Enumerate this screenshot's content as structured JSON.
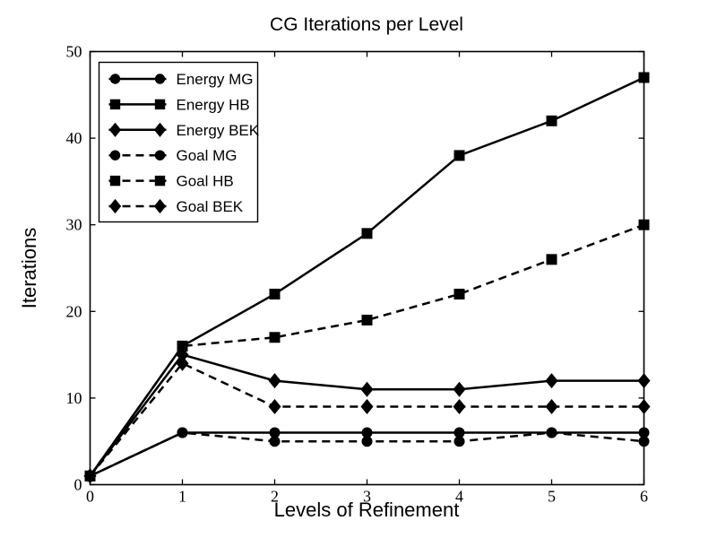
{
  "chart_data": {
    "type": "line",
    "title": "CG Iterations per Level",
    "xlabel": "Levels of Refinement",
    "ylabel": "Iterations",
    "x": [
      0,
      1,
      2,
      3,
      4,
      5,
      6
    ],
    "xlim": [
      0,
      6
    ],
    "ylim": [
      0,
      50
    ],
    "xticks": [
      "0",
      "1",
      "2",
      "3",
      "4",
      "5",
      "6"
    ],
    "yticks": [
      "0",
      "10",
      "20",
      "30",
      "40",
      "50"
    ],
    "grid": false,
    "legend_position": "upper-left",
    "foreground_color": "#000000",
    "background_color": "#ffffff",
    "series": [
      {
        "name": "Energy MG",
        "marker": "circle",
        "line": "solid",
        "values": [
          1,
          6,
          6,
          6,
          6,
          6,
          6
        ]
      },
      {
        "name": "Energy HB",
        "marker": "square",
        "line": "solid",
        "values": [
          1,
          16,
          22,
          29,
          38,
          42,
          47
        ]
      },
      {
        "name": "Energy BEK",
        "marker": "diamond",
        "line": "solid",
        "values": [
          1,
          15,
          12,
          11,
          11,
          12,
          12
        ]
      },
      {
        "name": "Goal MG",
        "marker": "circle",
        "line": "dashed",
        "values": [
          1,
          6,
          5,
          5,
          5,
          6,
          5
        ]
      },
      {
        "name": "Goal HB",
        "marker": "square",
        "line": "dashed",
        "values": [
          1,
          16,
          17,
          19,
          22,
          26,
          30
        ]
      },
      {
        "name": "Goal BEK",
        "marker": "diamond",
        "line": "dashed",
        "values": [
          1,
          14,
          9,
          9,
          9,
          9,
          9
        ]
      }
    ]
  }
}
